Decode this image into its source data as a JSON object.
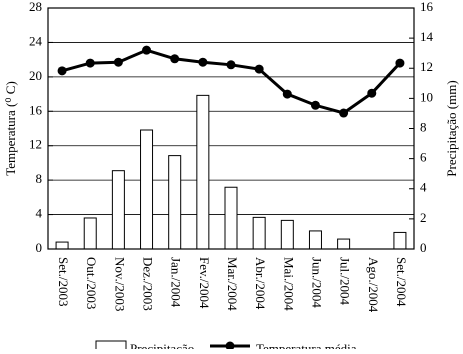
{
  "chart_data": {
    "type": "bar-line",
    "categories": [
      "Set./2003",
      "Out./2003",
      "Nov./2003",
      "Dez./2003",
      "Jan./2004",
      "Fev./2004",
      "Mar./2004",
      "Abr./2004",
      "Mai./2004",
      "Jun./2004",
      "Jul./2004",
      "Ago./2004",
      "Set./2004"
    ],
    "ylabel": "Temperatura (⁰ C)",
    "y2label": "Precipitação (mm)",
    "ylim": [
      0,
      28
    ],
    "yticks": [
      0,
      4,
      8,
      12,
      16,
      20,
      24,
      28
    ],
    "y2lim": [
      0,
      16
    ],
    "y2ticks": [
      0,
      2,
      4,
      6,
      8,
      10,
      12,
      14,
      16
    ],
    "grid": true,
    "series": [
      {
        "name": "Precipitação",
        "type": "bar",
        "axis": "y2",
        "color": "#ffffff",
        "values": [
          0.46,
          2.06,
          5.2,
          7.9,
          6.2,
          10.2,
          4.1,
          2.1,
          1.9,
          1.2,
          0.66,
          0,
          1.1
        ]
      },
      {
        "name": "Temperatura média",
        "type": "line",
        "color": "#000000",
        "values": [
          20.7,
          21.6,
          21.7,
          23.1,
          22.1,
          21.7,
          21.4,
          20.9,
          18.0,
          16.7,
          15.8,
          18.1,
          21.6
        ]
      }
    ]
  }
}
